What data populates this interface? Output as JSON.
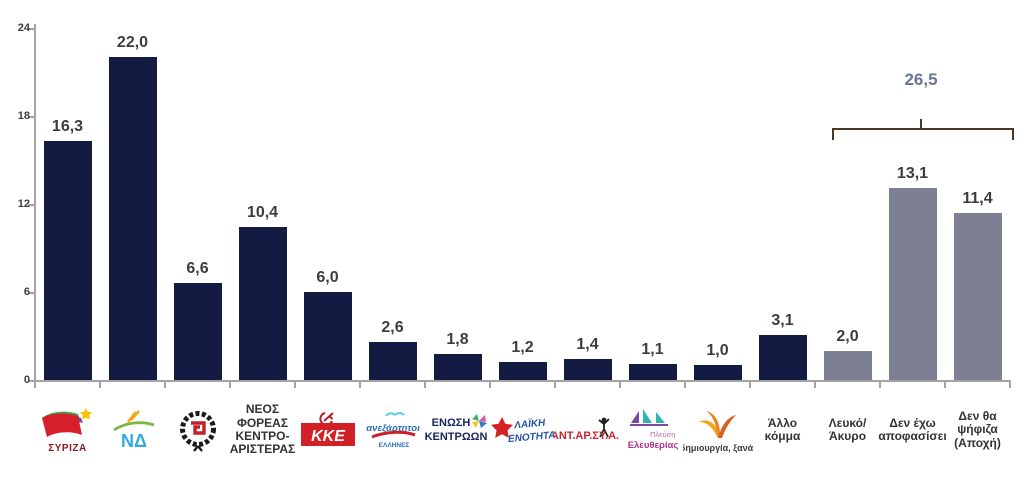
{
  "chart_data": {
    "type": "bar",
    "title": "",
    "xlabel": "",
    "ylabel": "",
    "ylim": [
      0,
      24
    ],
    "yticks": [
      "24",
      "18",
      "12",
      "6",
      "0"
    ],
    "grid": false,
    "legend": "none",
    "decimal_style": "comma",
    "bars": [
      {
        "party": "ΣΥΡΙΖΑ",
        "value": 16.3,
        "label": "16,3",
        "group": "party",
        "logo": "syriza-logo",
        "caption": "ΣΥΡΙΖΑ"
      },
      {
        "party": "ΝΔ",
        "value": 22.0,
        "label": "22,0",
        "group": "party",
        "logo": "nd-logo"
      },
      {
        "party": "Χρυσή Αυγή",
        "value": 6.6,
        "label": "6,6",
        "group": "party",
        "logo": "xrysi-avgi-logo"
      },
      {
        "party": "ΝΕΟΣ ΦΟΡΕΑΣ ΚΕΝΤΡΟΑΡΙΣΤΕΡΑΣ",
        "value": 10.4,
        "label": "10,4",
        "group": "party",
        "text": "ΝΕΟΣ\nΦΟΡΕΑΣ\nΚΕΝΤΡΟ-\nΑΡΙΣΤΕΡΑΣ"
      },
      {
        "party": "ΚΚΕ",
        "value": 6.0,
        "label": "6,0",
        "group": "party",
        "logo": "kke-logo"
      },
      {
        "party": "ΑΝΕΞΑΡΤΗΤΟΙ ΕΛΛΗΝΕΣ",
        "value": 2.6,
        "label": "2,6",
        "group": "party",
        "logo": "anexartitoi-ellines-logo"
      },
      {
        "party": "ΕΝΩΣΗ ΚΕΝΤΡΩΩΝ",
        "value": 1.8,
        "label": "1,8",
        "group": "party",
        "logo": "enosi-kentroon-logo"
      },
      {
        "party": "ΛΑΪΚΗ ΕΝΟΤΗΤΑ",
        "value": 1.2,
        "label": "1,2",
        "group": "party",
        "logo": "laiki-enotita-logo"
      },
      {
        "party": "ΑΝΤ.ΑΡ.ΣΥ.Α.",
        "value": 1.4,
        "label": "1,4",
        "group": "party",
        "logo": "antarsya-logo"
      },
      {
        "party": "Πλεύση Ελευθερίας",
        "value": 1.1,
        "label": "1,1",
        "group": "party",
        "logo": "plefsi-eleftherias-logo"
      },
      {
        "party": "δημιουργία, ξανά!",
        "value": 1.0,
        "label": "1,0",
        "group": "party",
        "logo": "dimiourgia-xana-logo"
      },
      {
        "party": "Άλλο κόμμα",
        "value": 3.1,
        "label": "3,1",
        "group": "party",
        "text": "Άλλο\nκόμμα"
      },
      {
        "party": "Λευκό/Άκυρο",
        "value": 2.0,
        "label": "2,0",
        "group": "nonvote",
        "text": "Λευκό/\nΆκυρο"
      },
      {
        "party": "Δεν έχω αποφασίσει",
        "value": 13.1,
        "label": "13,1",
        "group": "nonvote",
        "text": "Δεν έχω\nαποφασίσει"
      },
      {
        "party": "Δεν θα ψήφιζα (Αποχή)",
        "value": 11.4,
        "label": "11,4",
        "group": "nonvote",
        "text": "Δεν θα\nψήφιζα\n(Αποχή)"
      }
    ],
    "bracket": {
      "label": "26,5",
      "value": 26.5,
      "covers_last_n_bars": 3
    },
    "colors": {
      "party_bar": "#141b42",
      "nonvote_bar": "#7d7f93",
      "value_label": "#3d3d3d",
      "bracket_line": "#503424",
      "bracket_label": "#6d7390",
      "axis": "#a3a3a3"
    }
  }
}
